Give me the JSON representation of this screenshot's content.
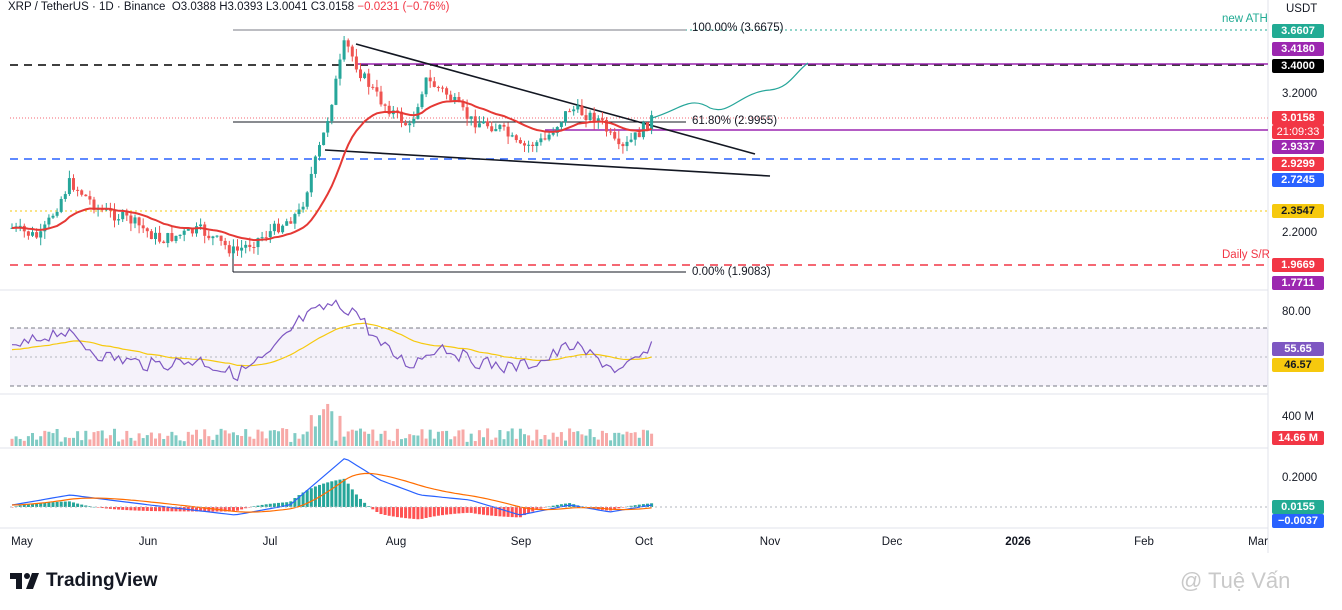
{
  "header": {
    "symbol": "XRP / TetherUS · 1D · Binance",
    "ohlc_prefix": "O",
    "open": "3.0388",
    "high": "3.0393",
    "low": "3.0041",
    "close": "3.0158",
    "change": "−0.0231 (−0.76%)"
  },
  "axis": {
    "currency": "USDT",
    "price_ticks": [
      "3.2000",
      "2.2000"
    ],
    "rsi_ticks": [
      "80.00"
    ],
    "volume_tick": "400 M",
    "macd_tick": "0.2000",
    "x_ticks": [
      "May",
      "Jun",
      "Jul",
      "Aug",
      "Sep",
      "Oct",
      "Nov",
      "Dec",
      "2026",
      "Feb",
      "Mar"
    ]
  },
  "price_tags": [
    {
      "label": "3.6607",
      "color": "#22ab94"
    },
    {
      "label": "3.4180",
      "color": "#9c27b0"
    },
    {
      "label": "3.4000",
      "color": "#000000"
    },
    {
      "label": "3.0158",
      "color": "#f23645"
    },
    {
      "label": "21:09:33",
      "color": "#f23645"
    },
    {
      "label": "2.9337",
      "color": "#9c27b0"
    },
    {
      "label": "2.9299",
      "color": "#f23645"
    },
    {
      "label": "2.7245",
      "color": "#2962ff"
    },
    {
      "label": "2.3547",
      "color": "#f6c90e"
    },
    {
      "label": "1.9669",
      "color": "#f23645"
    },
    {
      "label": "1.7711",
      "color": "#9c27b0"
    }
  ],
  "indicator_tags": [
    {
      "label": "55.65",
      "color": "#7e57c2"
    },
    {
      "label": "46.57",
      "color": "#f6c90e"
    },
    {
      "label": "14.66 M",
      "color": "#f23645"
    },
    {
      "label": "0.0155",
      "color": "#22ab94"
    },
    {
      "label": "−0.0037",
      "color": "#2962ff"
    }
  ],
  "annotations": {
    "fib_100": "100.00% (3.6675)",
    "fib_618": "61.80% (2.9955)",
    "fib_0": "0.00% (1.9083)",
    "new_ath": "new ATH",
    "daily_sr": "Daily S/R"
  },
  "branding": {
    "logo_text": "TradingView",
    "watermark": "@ Tuệ Vấn"
  },
  "colors": {
    "up": "#26a69a",
    "down": "#ef5350",
    "ema": "#e53935",
    "rsi": "#7e57c2",
    "rsi_ma": "#f6c90e"
  }
}
